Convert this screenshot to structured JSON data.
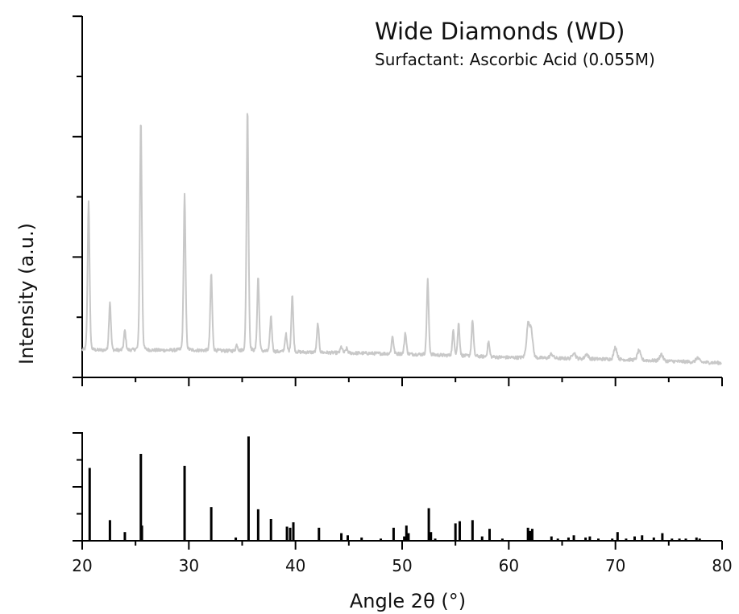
{
  "chart_data": {
    "type": "line",
    "title": "Wide Diamonds (WD)",
    "subtitle": "Surfactant: Ascorbic Acid (0.055M)",
    "xlabel": "Angle 2θ (°)",
    "ylabel": "Intensity (a.u.)",
    "xlim": [
      20,
      80
    ],
    "x_ticks": [
      "20",
      "30",
      "40",
      "50",
      "60",
      "70",
      "80"
    ],
    "grid": false,
    "colors": {
      "measured": "#c8c8c8",
      "reference": "#000000",
      "axis": "#000000"
    },
    "measured_pattern": {
      "ylim": [
        0,
        100
      ],
      "baseline": [
        {
          "x": 20,
          "y": 7.5
        },
        {
          "x": 30,
          "y": 7.5
        },
        {
          "x": 40,
          "y": 7.0
        },
        {
          "x": 50,
          "y": 6.5
        },
        {
          "x": 60,
          "y": 5.5
        },
        {
          "x": 70,
          "y": 5.0
        },
        {
          "x": 80,
          "y": 4.0
        }
      ],
      "peaks": [
        {
          "x": 20.6,
          "y": 49
        },
        {
          "x": 22.6,
          "y": 21
        },
        {
          "x": 24.0,
          "y": 13
        },
        {
          "x": 25.5,
          "y": 72
        },
        {
          "x": 29.6,
          "y": 51
        },
        {
          "x": 32.1,
          "y": 29
        },
        {
          "x": 34.5,
          "y": 9
        },
        {
          "x": 35.5,
          "y": 75
        },
        {
          "x": 36.5,
          "y": 28
        },
        {
          "x": 37.7,
          "y": 17
        },
        {
          "x": 39.1,
          "y": 12
        },
        {
          "x": 39.7,
          "y": 23
        },
        {
          "x": 42.1,
          "y": 15
        },
        {
          "x": 44.3,
          "y": 8.5
        },
        {
          "x": 44.8,
          "y": 8
        },
        {
          "x": 49.1,
          "y": 11.5
        },
        {
          "x": 50.3,
          "y": 12.5
        },
        {
          "x": 52.4,
          "y": 27
        },
        {
          "x": 54.8,
          "y": 13
        },
        {
          "x": 55.3,
          "y": 15
        },
        {
          "x": 56.6,
          "y": 16
        },
        {
          "x": 58.1,
          "y": 10
        },
        {
          "x": 61.8,
          "y": 14
        },
        {
          "x": 62.1,
          "y": 13
        },
        {
          "x": 64.0,
          "y": 6.5
        },
        {
          "x": 66.1,
          "y": 7
        },
        {
          "x": 67.3,
          "y": 6.5
        },
        {
          "x": 70.0,
          "y": 8.5
        },
        {
          "x": 72.2,
          "y": 7.5
        },
        {
          "x": 74.3,
          "y": 6.5
        },
        {
          "x": 77.7,
          "y": 5.5
        }
      ]
    },
    "reference_pattern": {
      "ylim": [
        0,
        100
      ],
      "sticks": [
        {
          "x": 20.7,
          "y": 67
        },
        {
          "x": 22.6,
          "y": 19
        },
        {
          "x": 24.0,
          "y": 8
        },
        {
          "x": 25.5,
          "y": 80
        },
        {
          "x": 25.6,
          "y": 14
        },
        {
          "x": 29.6,
          "y": 69
        },
        {
          "x": 32.1,
          "y": 31
        },
        {
          "x": 34.4,
          "y": 3
        },
        {
          "x": 35.6,
          "y": 96
        },
        {
          "x": 36.5,
          "y": 29
        },
        {
          "x": 37.7,
          "y": 20
        },
        {
          "x": 39.2,
          "y": 13
        },
        {
          "x": 39.5,
          "y": 12
        },
        {
          "x": 39.8,
          "y": 17
        },
        {
          "x": 42.2,
          "y": 12
        },
        {
          "x": 44.3,
          "y": 7
        },
        {
          "x": 44.9,
          "y": 5
        },
        {
          "x": 46.2,
          "y": 3
        },
        {
          "x": 48.0,
          "y": 2
        },
        {
          "x": 49.2,
          "y": 12
        },
        {
          "x": 50.2,
          "y": 4
        },
        {
          "x": 50.4,
          "y": 14
        },
        {
          "x": 50.6,
          "y": 7
        },
        {
          "x": 52.5,
          "y": 30
        },
        {
          "x": 52.7,
          "y": 8
        },
        {
          "x": 53.1,
          "y": 2
        },
        {
          "x": 55.0,
          "y": 16
        },
        {
          "x": 55.4,
          "y": 18
        },
        {
          "x": 56.6,
          "y": 19
        },
        {
          "x": 57.5,
          "y": 4
        },
        {
          "x": 58.2,
          "y": 11
        },
        {
          "x": 59.4,
          "y": 2
        },
        {
          "x": 61.8,
          "y": 12
        },
        {
          "x": 62.0,
          "y": 9
        },
        {
          "x": 62.2,
          "y": 11
        },
        {
          "x": 64.0,
          "y": 4
        },
        {
          "x": 64.6,
          "y": 2
        },
        {
          "x": 65.6,
          "y": 3
        },
        {
          "x": 66.1,
          "y": 5
        },
        {
          "x": 67.2,
          "y": 3
        },
        {
          "x": 67.6,
          "y": 4
        },
        {
          "x": 68.4,
          "y": 2
        },
        {
          "x": 69.7,
          "y": 2
        },
        {
          "x": 70.2,
          "y": 8
        },
        {
          "x": 71.0,
          "y": 2
        },
        {
          "x": 71.8,
          "y": 4
        },
        {
          "x": 72.5,
          "y": 5
        },
        {
          "x": 73.6,
          "y": 3
        },
        {
          "x": 74.4,
          "y": 7
        },
        {
          "x": 75.3,
          "y": 2
        },
        {
          "x": 76.0,
          "y": 2
        },
        {
          "x": 76.6,
          "y": 2
        },
        {
          "x": 77.6,
          "y": 3
        },
        {
          "x": 77.9,
          "y": 2
        }
      ]
    }
  }
}
